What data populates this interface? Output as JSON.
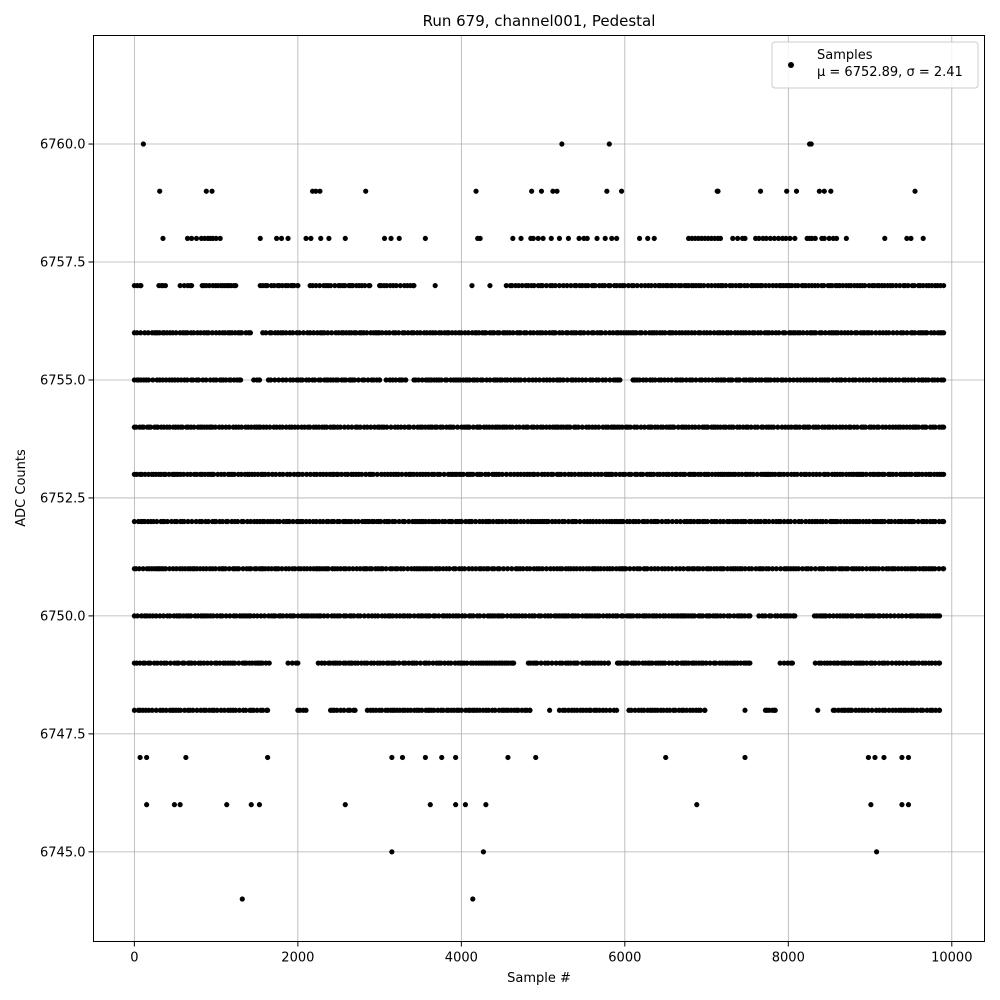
{
  "chart_data": {
    "type": "scatter",
    "title": "Run 679, channel001, Pedestal",
    "xlabel": "Sample #",
    "ylabel": "ADC Counts",
    "xlim": [
      -500,
      10400
    ],
    "ylim": [
      6743.1,
      6762.3
    ],
    "xticks": [
      0,
      2000,
      4000,
      6000,
      8000,
      10000
    ],
    "xtick_labels": [
      "0",
      "2000",
      "4000",
      "6000",
      "8000",
      "10000"
    ],
    "yticks": [
      6745.0,
      6747.5,
      6750.0,
      6752.5,
      6755.0,
      6757.5,
      6760.0
    ],
    "ytick_labels": [
      "6745.0",
      "6747.5",
      "6750.0",
      "6752.5",
      "6755.0",
      "6757.5",
      "6760.0"
    ],
    "grid": true,
    "legend_position": "top-right",
    "series_name": "Samples",
    "stats_label": "μ = 6752.89, σ = 2.41",
    "mu": 6752.89,
    "sigma": 2.41,
    "marker_color": "#000000",
    "sample_count": 10000,
    "x_max_sample": 9900,
    "rows": [
      {
        "y": 6744,
        "x": [
          1320,
          4140
        ]
      },
      {
        "y": 6745,
        "x": [
          3150,
          4270,
          9080
        ]
      },
      {
        "y": 6746,
        "x": [
          150,
          490,
          560,
          1130,
          1430,
          1530,
          2580,
          3620,
          3930,
          4050,
          4300,
          6880,
          9010,
          9390,
          9470
        ]
      },
      {
        "y": 6747,
        "x": [
          70,
          150,
          630,
          1630,
          3150,
          3280,
          3560,
          3760,
          3930,
          4570,
          4910,
          6500,
          7470,
          8980,
          9060,
          9170,
          9390,
          9470
        ]
      },
      {
        "y": 6748,
        "x_segments": [
          [
            0,
            1630
          ],
          [
            2000,
            2100
          ],
          [
            2400,
            2700
          ],
          [
            2850,
            4840
          ],
          [
            5080,
            5080
          ],
          [
            5200,
            5900
          ],
          [
            6050,
            6980
          ],
          [
            7470,
            7470
          ],
          [
            7720,
            7840
          ],
          [
            8360,
            8360
          ],
          [
            8550,
            9850
          ]
        ]
      },
      {
        "y": 6749,
        "x_segments": [
          [
            0,
            1650
          ],
          [
            1880,
            2000
          ],
          [
            2250,
            4640
          ],
          [
            4820,
            5420
          ],
          [
            5480,
            5800
          ],
          [
            5910,
            7530
          ],
          [
            7900,
            8050
          ],
          [
            8330,
            9850
          ]
        ]
      },
      {
        "y": 6750,
        "x_segments": [
          [
            0,
            6300
          ],
          [
            6340,
            7530
          ],
          [
            7640,
            8080
          ],
          [
            8320,
            9850
          ]
        ]
      },
      {
        "y": 6751,
        "x_segments": [
          [
            0,
            9900
          ]
        ]
      },
      {
        "y": 6752,
        "x_segments": [
          [
            0,
            9900
          ]
        ]
      },
      {
        "y": 6753,
        "x_segments": [
          [
            0,
            9900
          ]
        ]
      },
      {
        "y": 6754,
        "x_segments": [
          [
            0,
            9900
          ]
        ]
      },
      {
        "y": 6755,
        "x_segments": [
          [
            0,
            1300
          ],
          [
            1460,
            1530
          ],
          [
            1640,
            2660
          ],
          [
            2640,
            3000
          ],
          [
            3080,
            3320
          ],
          [
            3420,
            5940
          ],
          [
            6100,
            9900
          ]
        ]
      },
      {
        "y": 6756,
        "x_segments": [
          [
            0,
            1420
          ],
          [
            1570,
            9900
          ]
        ]
      },
      {
        "y": 6757,
        "x_segments": [
          [
            0,
            80
          ],
          [
            300,
            380
          ],
          [
            560,
            700
          ],
          [
            830,
            1240
          ],
          [
            1540,
            2000
          ],
          [
            2150,
            2880
          ],
          [
            3000,
            3420
          ],
          [
            3680,
            3680
          ],
          [
            4130,
            4130
          ],
          [
            4350,
            4350
          ],
          [
            4550,
            9900
          ]
        ]
      },
      {
        "y": 6758,
        "x": [
          350,
          650,
          700,
          760,
          820,
          860,
          900,
          930,
          960,
          1000,
          1050,
          1540,
          1740,
          1800,
          1880,
          2100,
          2160,
          2280,
          2380,
          2580,
          3060,
          3140,
          3240,
          3560,
          4200,
          4230,
          4630,
          4730,
          4850,
          4880,
          4940,
          5000,
          5100,
          5200,
          5310,
          5440,
          5500,
          5540,
          5660,
          5760,
          5840,
          5900,
          6180,
          6280,
          6360,
          6780,
          6820,
          6860,
          6900,
          6940,
          6980,
          7020,
          7060,
          7100,
          7140,
          7170,
          7320,
          7380,
          7440,
          7470,
          7600,
          7640,
          7690,
          7730,
          7780,
          7830,
          7880,
          7930,
          7970,
          8020,
          8080,
          8230,
          8260,
          8290,
          8330,
          8410,
          8440,
          8500,
          8550,
          8590,
          8710,
          9180,
          9450,
          9500,
          9650
        ]
      },
      {
        "y": 6759,
        "x": [
          310,
          880,
          950,
          2180,
          2220,
          2270,
          2830,
          4180,
          4860,
          4980,
          5120,
          5170,
          5780,
          5960,
          7130,
          7140,
          7660,
          7980,
          8100,
          8380,
          8440,
          8520,
          9550
        ]
      },
      {
        "y": 6760,
        "x": [
          110,
          5230,
          5810,
          8260,
          8280
        ]
      }
    ]
  }
}
